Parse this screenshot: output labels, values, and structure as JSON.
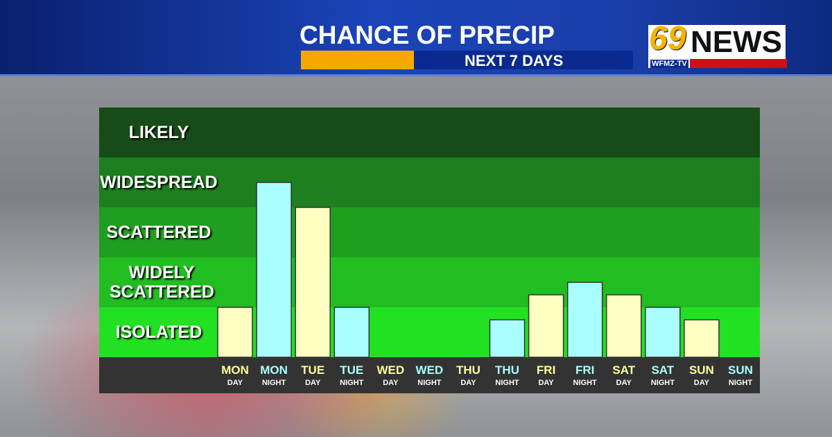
{
  "header": {
    "title": "CHANCE OF PRECIP",
    "subtitle": "NEXT 7 DAYS",
    "logo_number": "69",
    "logo_text": "NEWS",
    "logo_station": "WFMZ-TV"
  },
  "chart_data": {
    "type": "bar",
    "categories": [
      "MON",
      "MON",
      "TUE",
      "TUE",
      "WED",
      "WED",
      "THU",
      "THU",
      "FRI",
      "FRI",
      "SAT",
      "SAT",
      "SUN",
      "SUN"
    ],
    "category_sublabels": [
      "DAY",
      "NIGHT",
      "DAY",
      "NIGHT",
      "DAY",
      "NIGHT",
      "DAY",
      "NIGHT",
      "DAY",
      "NIGHT",
      "DAY",
      "NIGHT",
      "DAY",
      "NIGHT"
    ],
    "values": [
      1,
      3.5,
      3,
      1,
      0,
      0,
      0,
      0.75,
      1.25,
      1.5,
      1.25,
      1,
      0.75,
      0
    ],
    "colors": [
      "#ffffc2",
      "#a9ffff",
      "#ffffc2",
      "#a9ffff",
      "#ffffc2",
      "#a9ffff",
      "#ffffc2",
      "#a9ffff",
      "#ffffc2",
      "#a9ffff",
      "#ffffc2",
      "#a9ffff",
      "#ffffc2",
      "#a9ffff"
    ],
    "ylim": [
      0,
      5
    ],
    "yticks": [
      {
        "value": 0.5,
        "label": "ISOLATED"
      },
      {
        "value": 1.5,
        "label": "WIDELY SCATTERED"
      },
      {
        "value": 2.5,
        "label": "SCATTERED"
      },
      {
        "value": 3.5,
        "label": "WIDESPREAD"
      },
      {
        "value": 4.5,
        "label": "LIKELY"
      }
    ],
    "band_colors": [
      "#22e022",
      "#21bd21",
      "#1f9e1f",
      "#1d7f1d",
      "#174b17"
    ]
  }
}
